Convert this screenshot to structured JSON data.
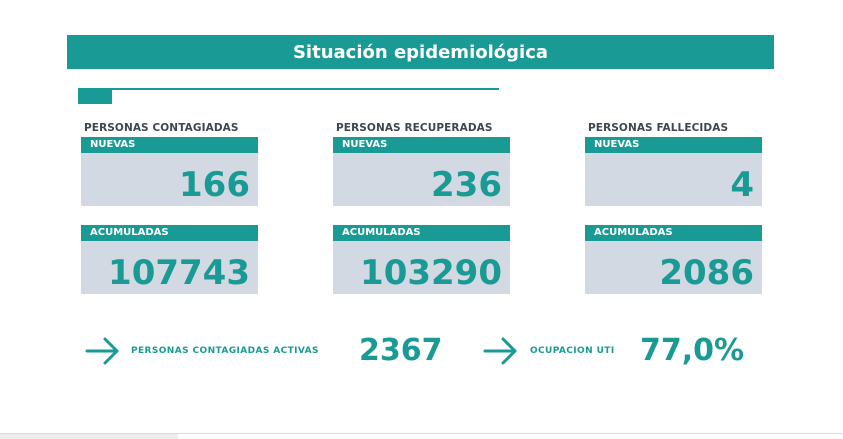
{
  "header": {
    "title": "Situación epidemiológica"
  },
  "progress": {
    "value_percent": 8
  },
  "categories": [
    {
      "title": "PERSONAS CONTAGIADAS",
      "nuevas_label": "NUEVAS",
      "nuevas_value": "166",
      "acumuladas_label": "ACUMULADAS",
      "acumuladas_value": "107743"
    },
    {
      "title": "PERSONAS RECUPERADAS",
      "nuevas_label": "NUEVAS",
      "nuevas_value": "236",
      "acumuladas_label": "ACUMULADAS",
      "acumuladas_value": "103290"
    },
    {
      "title": "PERSONAS FALLECIDAS",
      "nuevas_label": "NUEVAS",
      "nuevas_value": "4",
      "acumuladas_label": "ACUMULADAS",
      "acumuladas_value": "2086"
    }
  ],
  "stats": {
    "activas_label": "PERSONAS CONTAGIADAS ACTIVAS",
    "activas_value": "2367",
    "uti_label": "OCUPACION UTI",
    "uti_value": "77,0%"
  },
  "icons": {
    "arrow": "arrow-right-icon"
  },
  "colors": {
    "accent": "#1a9a95",
    "box_bg": "#d2d9e2",
    "title_text": "#3e4650"
  }
}
